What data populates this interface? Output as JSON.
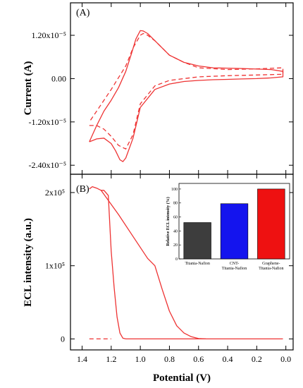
{
  "chart_data": [
    {
      "panel_label": "(A)",
      "type": "line",
      "ylabel": "Current (A)",
      "y_ticks": [
        "1.20x10⁻⁵",
        "0.00",
        "-1.20x10⁻⁵",
        "-2.40x10⁻⁵"
      ],
      "y_tick_values": [
        1.2e-05,
        0,
        -1.2e-05,
        -2.4e-05
      ],
      "ylim": [
        -2.65e-05,
        2.1e-05
      ],
      "xlim": [
        1.48,
        -0.05
      ],
      "color": "#ee3333",
      "series": [
        {
          "style": "solid",
          "x": [
            1.35,
            1.3,
            1.25,
            1.2,
            1.17,
            1.14,
            1.12,
            1.1,
            1.05,
            1.0,
            0.9,
            0.8,
            0.7,
            0.6,
            0.5,
            0.4,
            0.3,
            0.2,
            0.1,
            0.02,
            0.02,
            0.1,
            0.3,
            0.5,
            0.6,
            0.7,
            0.8,
            0.85,
            0.9,
            0.95,
            0.98,
            1.0,
            1.03,
            1.06,
            1.1,
            1.15,
            1.2,
            1.25,
            1.3,
            1.35
          ],
          "y": [
            -1.75e-05,
            -1.67e-05,
            -1.65e-05,
            -1.8e-05,
            -2e-05,
            -2.25e-05,
            -2.3e-05,
            -2.2e-05,
            -1.65e-05,
            -8e-06,
            -3e-06,
            -1.5e-06,
            -8e-07,
            -5e-07,
            -3e-07,
            -2e-07,
            -1e-07,
            0.0,
            2e-07,
            5e-07,
            2e-06,
            2.5e-06,
            2.8e-06,
            3e-06,
            3.5e-06,
            4.5e-06,
            6.5e-06,
            8.5e-06,
            1.05e-05,
            1.25e-05,
            1.32e-05,
            1.33e-05,
            1.1e-05,
            7e-06,
            2e-06,
            -2.5e-06,
            -6e-06,
            -9e-06,
            -1.3e-05,
            -1.75e-05
          ]
        },
        {
          "style": "dashed",
          "x": [
            1.35,
            1.3,
            1.25,
            1.2,
            1.15,
            1.1,
            1.05,
            1.0,
            0.9,
            0.8,
            0.6,
            0.4,
            0.2,
            0.02,
            0.02,
            0.2,
            0.4,
            0.6,
            0.7,
            0.8,
            0.85,
            0.9,
            0.95,
            0.98,
            1.0,
            1.05,
            1.1,
            1.2,
            1.3,
            1.35
          ],
          "y": [
            -1.3e-05,
            -1.3e-05,
            -1.4e-05,
            -1.6e-05,
            -1.85e-05,
            -1.95e-05,
            -1.55e-05,
            -7e-06,
            -2e-06,
            -5e-07,
            5e-07,
            8e-07,
            1e-06,
            1.2e-06,
            3e-06,
            2.7e-06,
            2.5e-06,
            3e-06,
            4.5e-06,
            6.5e-06,
            8.5e-06,
            1.05e-05,
            1.2e-05,
            1.25e-05,
            1.2e-05,
            8.5e-06,
            3.5e-06,
            -3e-06,
            -9e-06,
            -1.2e-05
          ]
        }
      ]
    },
    {
      "panel_label": "(B)",
      "type": "line",
      "xlabel": "Potential (V)",
      "ylabel": "ECL intensity (a.u.)",
      "x_ticks": [
        "1.4",
        "1.2",
        "1.0",
        "0.8",
        "0.6",
        "0.4",
        "0.2",
        "0.0"
      ],
      "x_tick_values": [
        1.4,
        1.2,
        1.0,
        0.8,
        0.6,
        0.4,
        0.2,
        0.0
      ],
      "y_ticks": [
        "2x10⁵",
        "1x10⁵",
        "0"
      ],
      "y_tick_values": [
        200000,
        100000,
        0
      ],
      "ylim": [
        -15000,
        225000
      ],
      "xlim": [
        1.48,
        -0.05
      ],
      "color": "#ee3333",
      "series": [
        {
          "style": "solid",
          "x": [
            1.35,
            1.33,
            1.3,
            1.27,
            1.25,
            1.22,
            1.2,
            1.18,
            1.16,
            1.14,
            1.12,
            1.1,
            1.05,
            1.0,
            0.95,
            0.9,
            0.85,
            0.8,
            0.75,
            0.7,
            0.65,
            0.6,
            0.55,
            0.5,
            0.4,
            0.3,
            0.2,
            0.1,
            0.02
          ],
          "y": [
            205000,
            208000,
            206000,
            203000,
            203000,
            196000,
            120000,
            70000,
            30000,
            8000,
            1000,
            0,
            0,
            0,
            0,
            0,
            0,
            0,
            0,
            0,
            0,
            0,
            0,
            0,
            0,
            0,
            0,
            0,
            0
          ],
          "note_return": true
        },
        {
          "style": "solid",
          "x": [
            1.27,
            1.15,
            1.05,
            0.95,
            0.9,
            0.85,
            0.8,
            0.75,
            0.7,
            0.65,
            0.6,
            0.55
          ],
          "y": [
            203000,
            170000,
            140000,
            110000,
            100000,
            68000,
            38000,
            18000,
            8000,
            3000,
            500,
            0
          ]
        },
        {
          "style": "dashed",
          "x": [
            1.35,
            1.2
          ],
          "y": [
            0,
            0
          ]
        }
      ],
      "inset": {
        "type": "bar",
        "ylabel": "Relative ECL intensity (%)",
        "categories": [
          "Titania-Nafion",
          "CNT-Titania-Nafion",
          "Graphene-Titania-Nafion"
        ],
        "category_lines": [
          [
            "Titania-Nafion"
          ],
          [
            "CNT-",
            "Titania-Nafion"
          ],
          [
            "Graphene-",
            "Titania-Nafion"
          ]
        ],
        "values": [
          52,
          79,
          100
        ],
        "colors": [
          "#3d3d3d",
          "#1414ee",
          "#ee1111"
        ],
        "ylim": [
          0,
          108
        ],
        "y_ticks": [
          "0",
          "20",
          "40",
          "60",
          "80",
          "100"
        ],
        "y_tick_values": [
          0,
          20,
          40,
          60,
          80,
          100
        ]
      }
    }
  ]
}
